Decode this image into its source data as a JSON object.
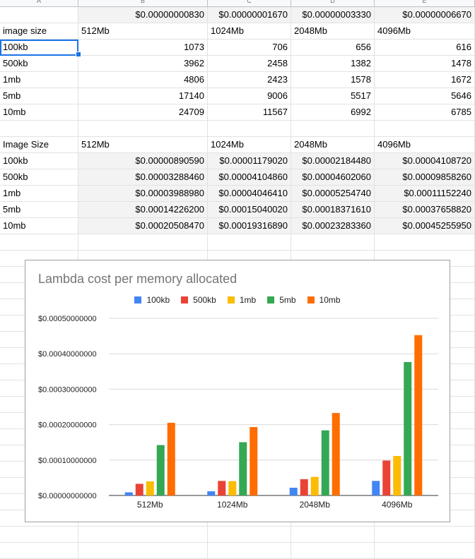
{
  "column_headers": [
    "A",
    "B",
    "C",
    "D",
    "E"
  ],
  "top_row": [
    "",
    "$0.00000000830",
    "$0.00000001670",
    "$0.00000003330",
    "$0.00000006670"
  ],
  "durations_table": {
    "header": [
      "image size",
      "512Mb",
      "1024Mb",
      "2048Mb",
      "4096Mb"
    ],
    "rows": [
      [
        "100kb",
        "1073",
        "706",
        "656",
        "616"
      ],
      [
        "500kb",
        "3962",
        "2458",
        "1382",
        "1478"
      ],
      [
        "1mb",
        "4806",
        "2423",
        "1578",
        "1672"
      ],
      [
        "5mb",
        "17140",
        "9006",
        "5517",
        "5646"
      ],
      [
        "10mb",
        "24709",
        "11567",
        "6992",
        "6785"
      ]
    ]
  },
  "cost_table": {
    "header": [
      "Image Size",
      "512Mb",
      "1024Mb",
      "2048Mb",
      "4096Mb"
    ],
    "rows": [
      [
        "100kb",
        "$0.00000890590",
        "$0.00001179020",
        "$0.00002184480",
        "$0.00004108720"
      ],
      [
        "500kb",
        "$0.00003288460",
        "$0.00004104860",
        "$0.00004602060",
        "$0.00009858260"
      ],
      [
        "1mb",
        "$0.00003988980",
        "$0.00004046410",
        "$0.00005254740",
        "$0.00011152240"
      ],
      [
        "5mb",
        "$0.00014226200",
        "$0.00015040020",
        "$0.00018371610",
        "$0.00037658820"
      ],
      [
        "10mb",
        "$0.00020508470",
        "$0.00019316890",
        "$0.00023283360",
        "$0.00045255950"
      ]
    ]
  },
  "chart_data": {
    "type": "bar",
    "title": "Lambda cost per memory allocated",
    "categories": [
      "512Mb",
      "1024Mb",
      "2048Mb",
      "4096Mb"
    ],
    "series": [
      {
        "name": "100kb",
        "color": "#4285f4",
        "values": [
          8.9059e-06,
          1.17902e-05,
          2.18448e-05,
          4.10872e-05
        ]
      },
      {
        "name": "500kb",
        "color": "#ea4335",
        "values": [
          3.28846e-05,
          4.10486e-05,
          4.60206e-05,
          9.85826e-05
        ]
      },
      {
        "name": "1mb",
        "color": "#fbbc04",
        "values": [
          3.98898e-05,
          4.04641e-05,
          5.25474e-05,
          0.0001115224
        ]
      },
      {
        "name": "5mb",
        "color": "#34a853",
        "values": [
          0.000142262,
          0.0001504002,
          0.0001837161,
          0.0003765882
        ]
      },
      {
        "name": "10mb",
        "color": "#ff6d01",
        "values": [
          0.0002050847,
          0.0001931689,
          0.0002328336,
          0.0004525595
        ]
      }
    ],
    "yticks": [
      "$0.00000000000",
      "$0.00010000000",
      "$0.00020000000",
      "$0.00030000000",
      "$0.00040000000",
      "$0.00050000000"
    ],
    "ylim": [
      0,
      0.0005
    ],
    "legend_position": "top",
    "grid": true
  }
}
